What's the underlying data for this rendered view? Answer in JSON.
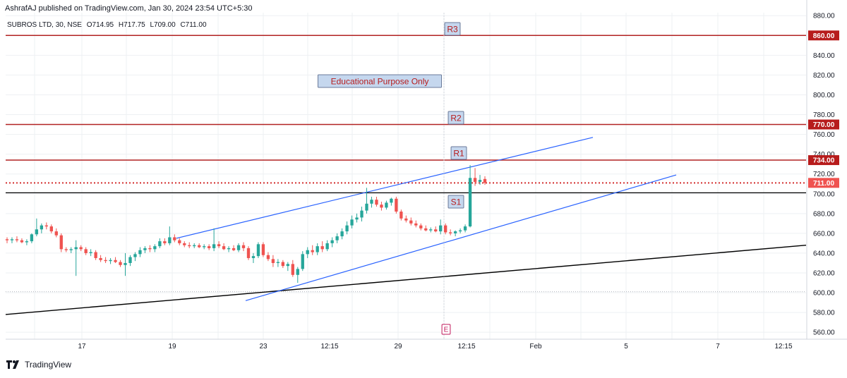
{
  "header": {
    "published_text": "AshrafAJ published on TradingView.com, Jan 30, 2024 23:54 UTC+5:30"
  },
  "symbol": {
    "name": "SUBROS LTD, 30, NSE",
    "open": "O714.95",
    "high": "H717.75",
    "low": "L709.00",
    "close": "C711.00"
  },
  "annotations": {
    "educational": "Educational Purpose Only",
    "r3": "R3",
    "r2": "R2",
    "r1": "R1",
    "s1": "S1",
    "event": "E"
  },
  "levels": {
    "r3": "860.00",
    "r2": "770.00",
    "r1": "734.00",
    "last": "711.00"
  },
  "footer": {
    "brand": "TradingView"
  },
  "colors": {
    "up": "#26a69a",
    "down": "#ef5350",
    "level_line": "#b22222",
    "channel": "#2962ff",
    "trend": "#000000",
    "grid": "#eef0f3"
  },
  "chart_data": {
    "type": "candlestick",
    "y_axis": {
      "ticks": [
        "880.00",
        "860.00",
        "840.00",
        "820.00",
        "800.00",
        "780.00",
        "760.00",
        "740.00",
        "720.00",
        "700.00",
        "680.00",
        "660.00",
        "640.00",
        "620.00",
        "600.00",
        "580.00",
        "560.00"
      ],
      "range": [
        553,
        883
      ]
    },
    "x_axis": {
      "ticks": [
        "17",
        "19",
        "23",
        "12:15",
        "29",
        "12:15",
        "Feb",
        "5",
        "7",
        "12:15"
      ]
    },
    "horizontal_levels": [
      {
        "label": "R3",
        "price": 860,
        "style": "solid"
      },
      {
        "label": "R2",
        "price": 770,
        "style": "solid"
      },
      {
        "label": "R1",
        "price": 734,
        "style": "solid"
      },
      {
        "label": "last",
        "price": 711,
        "style": "dotted"
      },
      {
        "label": "",
        "price": 701,
        "style": "solid-black"
      },
      {
        "label": "",
        "price": 601,
        "style": "dotted-gray"
      }
    ],
    "candles": [
      {
        "o": 654,
        "h": 656,
        "l": 650,
        "c": 653
      },
      {
        "o": 653,
        "h": 656,
        "l": 650,
        "c": 654
      },
      {
        "o": 654,
        "h": 657,
        "l": 651,
        "c": 653
      },
      {
        "o": 653,
        "h": 655,
        "l": 650,
        "c": 651
      },
      {
        "o": 651,
        "h": 654,
        "l": 648,
        "c": 652
      },
      {
        "o": 652,
        "h": 660,
        "l": 650,
        "c": 659
      },
      {
        "o": 659,
        "h": 675,
        "l": 657,
        "c": 664
      },
      {
        "o": 664,
        "h": 670,
        "l": 660,
        "c": 668
      },
      {
        "o": 668,
        "h": 671,
        "l": 664,
        "c": 667
      },
      {
        "o": 667,
        "h": 669,
        "l": 660,
        "c": 662
      },
      {
        "o": 662,
        "h": 665,
        "l": 656,
        "c": 658
      },
      {
        "o": 658,
        "h": 660,
        "l": 641,
        "c": 644
      },
      {
        "o": 644,
        "h": 646,
        "l": 641,
        "c": 643
      },
      {
        "o": 643,
        "h": 646,
        "l": 640,
        "c": 644
      },
      {
        "o": 644,
        "h": 653,
        "l": 617,
        "c": 646
      },
      {
        "o": 646,
        "h": 648,
        "l": 642,
        "c": 644
      },
      {
        "o": 644,
        "h": 646,
        "l": 638,
        "c": 640
      },
      {
        "o": 640,
        "h": 644,
        "l": 637,
        "c": 641
      },
      {
        "o": 641,
        "h": 643,
        "l": 633,
        "c": 635
      },
      {
        "o": 635,
        "h": 638,
        "l": 631,
        "c": 633
      },
      {
        "o": 633,
        "h": 636,
        "l": 630,
        "c": 632
      },
      {
        "o": 632,
        "h": 635,
        "l": 629,
        "c": 633
      },
      {
        "o": 633,
        "h": 636,
        "l": 630,
        "c": 631
      },
      {
        "o": 631,
        "h": 633,
        "l": 626,
        "c": 628
      },
      {
        "o": 628,
        "h": 640,
        "l": 617,
        "c": 630
      },
      {
        "o": 630,
        "h": 638,
        "l": 627,
        "c": 636
      },
      {
        "o": 636,
        "h": 641,
        "l": 632,
        "c": 639
      },
      {
        "o": 639,
        "h": 646,
        "l": 636,
        "c": 643
      },
      {
        "o": 643,
        "h": 647,
        "l": 640,
        "c": 645
      },
      {
        "o": 645,
        "h": 648,
        "l": 641,
        "c": 644
      },
      {
        "o": 644,
        "h": 649,
        "l": 641,
        "c": 647
      },
      {
        "o": 647,
        "h": 655,
        "l": 645,
        "c": 652
      },
      {
        "o": 652,
        "h": 655,
        "l": 648,
        "c": 650
      },
      {
        "o": 650,
        "h": 667,
        "l": 648,
        "c": 656
      },
      {
        "o": 656,
        "h": 659,
        "l": 651,
        "c": 653
      },
      {
        "o": 653,
        "h": 655,
        "l": 648,
        "c": 650
      },
      {
        "o": 650,
        "h": 652,
        "l": 646,
        "c": 648
      },
      {
        "o": 648,
        "h": 651,
        "l": 645,
        "c": 647
      },
      {
        "o": 647,
        "h": 650,
        "l": 645,
        "c": 648
      },
      {
        "o": 648,
        "h": 650,
        "l": 645,
        "c": 646
      },
      {
        "o": 646,
        "h": 649,
        "l": 644,
        "c": 647
      },
      {
        "o": 647,
        "h": 649,
        "l": 643,
        "c": 645
      },
      {
        "o": 645,
        "h": 665,
        "l": 642,
        "c": 649
      },
      {
        "o": 649,
        "h": 652,
        "l": 645,
        "c": 647
      },
      {
        "o": 647,
        "h": 650,
        "l": 643,
        "c": 644
      },
      {
        "o": 644,
        "h": 647,
        "l": 641,
        "c": 645
      },
      {
        "o": 645,
        "h": 648,
        "l": 642,
        "c": 643
      },
      {
        "o": 643,
        "h": 650,
        "l": 641,
        "c": 648
      },
      {
        "o": 648,
        "h": 651,
        "l": 642,
        "c": 645
      },
      {
        "o": 645,
        "h": 647,
        "l": 633,
        "c": 635
      },
      {
        "o": 635,
        "h": 640,
        "l": 630,
        "c": 637
      },
      {
        "o": 637,
        "h": 651,
        "l": 635,
        "c": 649
      },
      {
        "o": 649,
        "h": 651,
        "l": 636,
        "c": 638
      },
      {
        "o": 638,
        "h": 641,
        "l": 632,
        "c": 634
      },
      {
        "o": 634,
        "h": 638,
        "l": 626,
        "c": 630
      },
      {
        "o": 630,
        "h": 634,
        "l": 626,
        "c": 631
      },
      {
        "o": 631,
        "h": 633,
        "l": 625,
        "c": 627
      },
      {
        "o": 627,
        "h": 631,
        "l": 622,
        "c": 629
      },
      {
        "o": 629,
        "h": 633,
        "l": 616,
        "c": 618
      },
      {
        "o": 618,
        "h": 626,
        "l": 610,
        "c": 624
      },
      {
        "o": 624,
        "h": 642,
        "l": 622,
        "c": 639
      },
      {
        "o": 639,
        "h": 646,
        "l": 635,
        "c": 643
      },
      {
        "o": 643,
        "h": 648,
        "l": 638,
        "c": 641
      },
      {
        "o": 641,
        "h": 650,
        "l": 638,
        "c": 647
      },
      {
        "o": 647,
        "h": 652,
        "l": 641,
        "c": 644
      },
      {
        "o": 644,
        "h": 653,
        "l": 642,
        "c": 650
      },
      {
        "o": 650,
        "h": 656,
        "l": 646,
        "c": 653
      },
      {
        "o": 653,
        "h": 660,
        "l": 650,
        "c": 657
      },
      {
        "o": 657,
        "h": 665,
        "l": 654,
        "c": 662
      },
      {
        "o": 662,
        "h": 672,
        "l": 659,
        "c": 668
      },
      {
        "o": 668,
        "h": 678,
        "l": 665,
        "c": 674
      },
      {
        "o": 674,
        "h": 680,
        "l": 671,
        "c": 676
      },
      {
        "o": 676,
        "h": 687,
        "l": 672,
        "c": 683
      },
      {
        "o": 683,
        "h": 706,
        "l": 680,
        "c": 690
      },
      {
        "o": 690,
        "h": 697,
        "l": 686,
        "c": 694
      },
      {
        "o": 694,
        "h": 697,
        "l": 687,
        "c": 689
      },
      {
        "o": 689,
        "h": 692,
        "l": 683,
        "c": 686
      },
      {
        "o": 686,
        "h": 693,
        "l": 684,
        "c": 691
      },
      {
        "o": 691,
        "h": 696,
        "l": 688,
        "c": 695
      },
      {
        "o": 695,
        "h": 697,
        "l": 680,
        "c": 682
      },
      {
        "o": 682,
        "h": 684,
        "l": 673,
        "c": 675
      },
      {
        "o": 675,
        "h": 678,
        "l": 671,
        "c": 673
      },
      {
        "o": 673,
        "h": 676,
        "l": 668,
        "c": 670
      },
      {
        "o": 670,
        "h": 673,
        "l": 666,
        "c": 668
      },
      {
        "o": 668,
        "h": 670,
        "l": 663,
        "c": 665
      },
      {
        "o": 665,
        "h": 668,
        "l": 662,
        "c": 663
      },
      {
        "o": 663,
        "h": 666,
        "l": 661,
        "c": 664
      },
      {
        "o": 664,
        "h": 667,
        "l": 661,
        "c": 662
      },
      {
        "o": 662,
        "h": 674,
        "l": 659,
        "c": 668
      },
      {
        "o": 668,
        "h": 670,
        "l": 659,
        "c": 661
      },
      {
        "o": 661,
        "h": 664,
        "l": 658,
        "c": 660
      },
      {
        "o": 660,
        "h": 663,
        "l": 657,
        "c": 662
      },
      {
        "o": 662,
        "h": 665,
        "l": 660,
        "c": 663
      },
      {
        "o": 663,
        "h": 669,
        "l": 661,
        "c": 667
      },
      {
        "o": 667,
        "h": 729,
        "l": 666,
        "c": 716
      },
      {
        "o": 716,
        "h": 726,
        "l": 708,
        "c": 712
      },
      {
        "o": 712,
        "h": 719,
        "l": 709,
        "c": 714
      },
      {
        "o": 714.95,
        "h": 717.75,
        "l": 709,
        "c": 711
      }
    ]
  }
}
